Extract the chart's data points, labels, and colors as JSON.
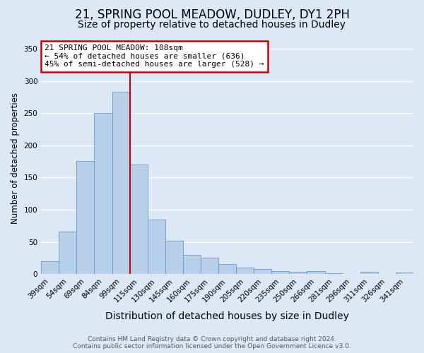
{
  "title": "21, SPRING POOL MEADOW, DUDLEY, DY1 2PH",
  "subtitle": "Size of property relative to detached houses in Dudley",
  "xlabel": "Distribution of detached houses by size in Dudley",
  "ylabel": "Number of detached properties",
  "bar_labels": [
    "39sqm",
    "54sqm",
    "69sqm",
    "84sqm",
    "99sqm",
    "115sqm",
    "130sqm",
    "145sqm",
    "160sqm",
    "175sqm",
    "190sqm",
    "205sqm",
    "220sqm",
    "235sqm",
    "250sqm",
    "266sqm",
    "281sqm",
    "296sqm",
    "311sqm",
    "326sqm",
    "341sqm"
  ],
  "bar_values": [
    20,
    66,
    176,
    250,
    283,
    170,
    85,
    52,
    30,
    25,
    15,
    10,
    8,
    5,
    4,
    5,
    1,
    0,
    3,
    0,
    2
  ],
  "bar_color": "#b8d0ea",
  "bar_edge_color": "#6699cc",
  "background_color": "#dce8f5",
  "plot_bg_color": "#dce8f5",
  "grid_color": "#ffffff",
  "annotation_text_line1": "21 SPRING POOL MEADOW: 108sqm",
  "annotation_text_line2": "← 54% of detached houses are smaller (636)",
  "annotation_text_line3": "45% of semi-detached houses are larger (528) →",
  "annotation_box_facecolor": "#ffffff",
  "annotation_border_color": "#cc0000",
  "vline_color": "#cc0000",
  "vline_x_index": 5,
  "ylim": [
    0,
    360
  ],
  "yticks": [
    0,
    50,
    100,
    150,
    200,
    250,
    300,
    350
  ],
  "footer_line1": "Contains HM Land Registry data © Crown copyright and database right 2024.",
  "footer_line2": "Contains public sector information licensed under the Open Government Licence v3.0.",
  "title_fontsize": 12,
  "subtitle_fontsize": 10,
  "xlabel_fontsize": 10,
  "ylabel_fontsize": 8.5,
  "tick_fontsize": 7.5,
  "annotation_fontsize": 8,
  "footer_fontsize": 6.5
}
